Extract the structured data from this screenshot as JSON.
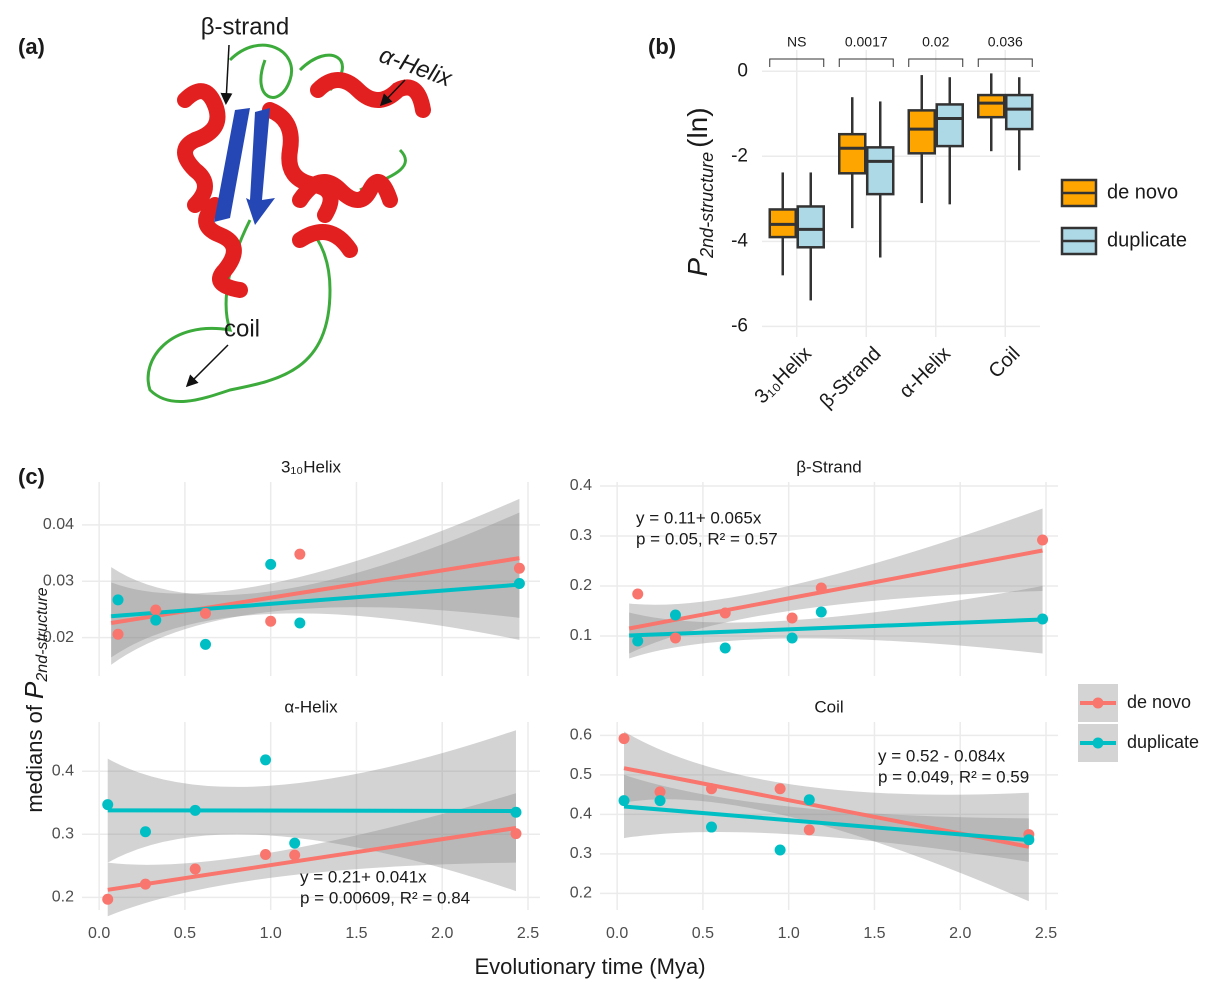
{
  "panel_labels": [
    "(a)",
    "(b)",
    "(c)"
  ],
  "structure_labels": [
    "β-strand",
    "α-Helix",
    "coil"
  ],
  "chart_data": [
    {
      "type": "box",
      "categories": [
        "3₁₀Helix",
        "β-Strand",
        "α-Helix",
        "Coil"
      ],
      "ylabel": {
        "var": "P",
        "sub": "2nd-structure",
        "unit": "(ln)"
      },
      "ylim": [
        -6.25,
        0.5
      ],
      "yticks": [
        -6,
        -4,
        -2,
        0
      ],
      "grid": true,
      "annotations": [
        "NS",
        "0.0017",
        "0.02",
        "0.036"
      ],
      "legend": "right",
      "series": [
        {
          "name": "de novo",
          "color": "#FFA500",
          "whisker_low": [
            -4.8,
            -3.69,
            -3.1,
            -1.88
          ],
          "q1": [
            -3.9,
            -2.4,
            -1.93,
            -1.08
          ],
          "median": [
            -3.6,
            -1.81,
            -1.36,
            -0.75
          ],
          "q3": [
            -3.25,
            -1.48,
            -0.92,
            -0.56
          ],
          "whisker_high": [
            -2.38,
            -0.61,
            -0.09,
            -0.05
          ]
        },
        {
          "name": "duplicate",
          "color": "#ADD8E6",
          "whisker_low": [
            -5.39,
            -4.38,
            -3.13,
            -2.33
          ],
          "q1": [
            -4.14,
            -2.89,
            -1.76,
            -1.36
          ],
          "median": [
            -3.72,
            -2.12,
            -1.11,
            -0.89
          ],
          "q3": [
            -3.18,
            -1.79,
            -0.78,
            -0.56
          ],
          "whisker_high": [
            -2.38,
            -0.71,
            -0.14,
            -0.14
          ]
        }
      ]
    },
    {
      "type": "scatter",
      "xlabel": "Evolutionary time (Mya)",
      "ylabel": {
        "text": "medians of ",
        "var": "P",
        "sub": "2nd-structure"
      },
      "xlim": [
        -0.1,
        2.57
      ],
      "xticks": [
        {
          "value": 0,
          "label": "0.0"
        },
        0.5,
        {
          "value": 1,
          "label": "1.0"
        },
        1.5,
        {
          "value": 2,
          "label": "2.0"
        },
        2.5
      ],
      "grid": true,
      "legend": "right",
      "facets": [
        {
          "title": "3₁₀Helix",
          "ylim": [
            0.0132,
            0.0476
          ],
          "yticks": [
            0.02,
            0.03,
            0.04
          ],
          "series": [
            {
              "name": "de novo",
              "color": "#F8766D",
              "x": [
                0.11,
                0.33,
                0.62,
                1.0,
                1.17,
                2.45
              ],
              "values": [
                0.0206,
                0.0249,
                0.0243,
                0.0229,
                0.0348,
                0.0323
              ],
              "fit_x": [
                0.07,
                2.45
              ],
              "fit": [
                0.0226,
                0.0341
              ],
              "ci_x": [
                0.07,
                1.0,
                2.45
              ],
              "ci_lower": [
                0.0152,
                0.0246,
                0.0235
              ],
              "ci_upper": [
                0.0298,
                0.0296,
                0.0446
              ]
            },
            {
              "name": "duplicate",
              "color": "#00BFC4",
              "x": [
                0.11,
                0.33,
                0.62,
                1.0,
                1.17,
                2.45
              ],
              "values": [
                0.0267,
                0.0231,
                0.0188,
                0.033,
                0.0226,
                0.0296
              ],
              "fit_x": [
                0.07,
                2.45
              ],
              "fit": [
                0.0238,
                0.0294
              ],
              "ci_x": [
                0.07,
                1.0,
                2.45
              ],
              "ci_lower": [
                0.0165,
                0.0242,
                0.0196
              ],
              "ci_upper": [
                0.0325,
                0.0282,
                0.0422
              ]
            }
          ]
        },
        {
          "title": "β-Strand",
          "ylim": [
            0.02,
            0.408
          ],
          "yticks": [
            0.1,
            0.2,
            0.3,
            0.4
          ],
          "annotation": [
            "y = 0.11+ 0.065x",
            "p = 0.05, R² = 0.57"
          ],
          "series": [
            {
              "name": "de novo",
              "color": "#F8766D",
              "x": [
                0.12,
                0.34,
                0.63,
                1.02,
                1.19,
                2.48
              ],
              "values": [
                0.184,
                0.096,
                0.146,
                0.136,
                0.196,
                0.292
              ],
              "fit_x": [
                0.07,
                2.48
              ],
              "fit": [
                0.115,
                0.271
              ],
              "ci_x": [
                0.07,
                1.0,
                2.48
              ],
              "ci_lower": [
                0.065,
                0.15,
                0.19
              ],
              "ci_upper": [
                0.165,
                0.2,
                0.355
              ]
            },
            {
              "name": "duplicate",
              "color": "#00BFC4",
              "x": [
                0.12,
                0.34,
                0.63,
                1.02,
                1.19,
                2.48
              ],
              "values": [
                0.09,
                0.142,
                0.076,
                0.096,
                0.148,
                0.134
              ],
              "fit_x": [
                0.07,
                2.48
              ],
              "fit": [
                0.101,
                0.133
              ],
              "ci_x": [
                0.07,
                1.0,
                2.48
              ],
              "ci_lower": [
                0.055,
                0.095,
                0.065
              ],
              "ci_upper": [
                0.147,
                0.131,
                0.2
              ]
            }
          ]
        },
        {
          "title": "α-Helix",
          "ylim": [
            0.18,
            0.478
          ],
          "yticks": [
            0.2,
            0.3,
            0.4
          ],
          "annotation": [
            "y = 0.21+ 0.041x",
            "p = 0.00609, R² = 0.84"
          ],
          "series": [
            {
              "name": "de novo",
              "color": "#F8766D",
              "x": [
                0.05,
                0.27,
                0.56,
                0.97,
                1.14,
                2.43
              ],
              "values": [
                0.197,
                0.221,
                0.245,
                0.268,
                0.267,
                0.301
              ],
              "fit_x": [
                0.05,
                2.43
              ],
              "fit": [
                0.212,
                0.31
              ],
              "ci_x": [
                0.05,
                1.0,
                2.43
              ],
              "ci_lower": [
                0.17,
                0.231,
                0.255
              ],
              "ci_upper": [
                0.255,
                0.271,
                0.365
              ]
            },
            {
              "name": "duplicate",
              "color": "#00BFC4",
              "x": [
                0.05,
                0.27,
                0.56,
                0.97,
                1.14,
                2.43
              ],
              "values": [
                0.347,
                0.304,
                0.338,
                0.418,
                0.286,
                0.335
              ],
              "fit_x": [
                0.05,
                2.43
              ],
              "fit": [
                0.338,
                0.337
              ],
              "ci_x": [
                0.05,
                1.0,
                2.43
              ],
              "ci_lower": [
                0.255,
                0.298,
                0.21
              ],
              "ci_upper": [
                0.42,
                0.377,
                0.465
              ]
            }
          ]
        },
        {
          "title": "Coil",
          "ylim": [
            0.158,
            0.634
          ],
          "yticks": [
            0.2,
            0.3,
            0.4,
            0.5,
            0.6
          ],
          "annotation": [
            "y = 0.52 - 0.084x",
            "p = 0.049, R² = 0.59"
          ],
          "series": [
            {
              "name": "de novo",
              "color": "#F8766D",
              "x": [
                0.04,
                0.25,
                0.55,
                0.95,
                1.12,
                2.4
              ],
              "values": [
                0.592,
                0.457,
                0.465,
                0.465,
                0.361,
                0.349
              ],
              "fit_x": [
                0.04,
                2.4
              ],
              "fit": [
                0.517,
                0.318
              ],
              "ci_x": [
                0.04,
                1.0,
                2.4
              ],
              "ci_lower": [
                0.43,
                0.395,
                0.18
              ],
              "ci_upper": [
                0.61,
                0.477,
                0.455
              ]
            },
            {
              "name": "duplicate",
              "color": "#00BFC4",
              "x": [
                0.04,
                0.25,
                0.55,
                0.95,
                1.12,
                2.4
              ],
              "values": [
                0.435,
                0.435,
                0.368,
                0.31,
                0.437,
                0.336
              ],
              "fit_x": [
                0.04,
                2.4
              ],
              "fit": [
                0.42,
                0.335
              ],
              "ci_x": [
                0.04,
                1.0,
                2.4
              ],
              "ci_lower": [
                0.34,
                0.35,
                0.28
              ],
              "ci_upper": [
                0.5,
                0.42,
                0.39
              ]
            }
          ]
        }
      ]
    }
  ]
}
